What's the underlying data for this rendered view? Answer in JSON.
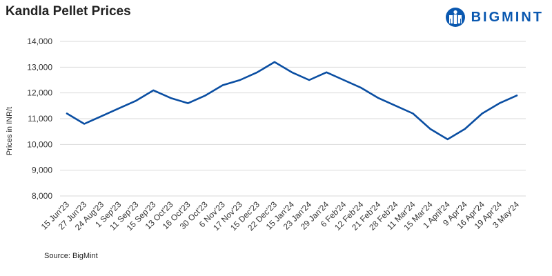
{
  "header": {
    "title": "Kandla Pellet Prices",
    "brand": "BIGMINT",
    "brand_color": "#0a58b0"
  },
  "footer": {
    "source": "Source: BigMint"
  },
  "chart_data": {
    "type": "line",
    "title": "Kandla Pellet Prices",
    "xlabel": "",
    "ylabel": "Prices in INR/t",
    "ylim": [
      8000,
      14000
    ],
    "yticks": [
      8000,
      9000,
      10000,
      11000,
      12000,
      13000,
      14000
    ],
    "ytick_labels": [
      "8,000",
      "9,000",
      "10,000",
      "11,000",
      "12,000",
      "13,000",
      "14,000"
    ],
    "grid": true,
    "line_color": "#0a4ea2",
    "categories": [
      "15 Jun'23",
      "27 Jun'23",
      "24 Aug'23",
      "1 Sep'23",
      "11 Sep'23",
      "15 Sep'23",
      "13 Oct'23",
      "16 Oct'23",
      "30 Oct'23",
      "6 Nov'23",
      "17 Nov'23",
      "15 Dec'23",
      "22 Dec'23",
      "15 Jan'24",
      "23 Jan'24",
      "29 Jan'24",
      "6 Feb'24",
      "12 Feb'24",
      "21 Feb'24",
      "28 Feb'24",
      "11 Mar'24",
      "15 Mar'24",
      "1 April'24",
      "9 Apr'24",
      "16 Apr'24",
      "19 Apr'24",
      "3 May'24"
    ],
    "series": [
      {
        "values": [
          11200,
          10800,
          11100,
          11400,
          11700,
          12100,
          11800,
          11600,
          11900,
          12300,
          12500,
          12800,
          13200,
          12800,
          12500,
          12800,
          12500,
          12200,
          11800,
          11500,
          11200,
          10600,
          10200,
          10600,
          11200,
          11600,
          11900
        ]
      }
    ]
  }
}
